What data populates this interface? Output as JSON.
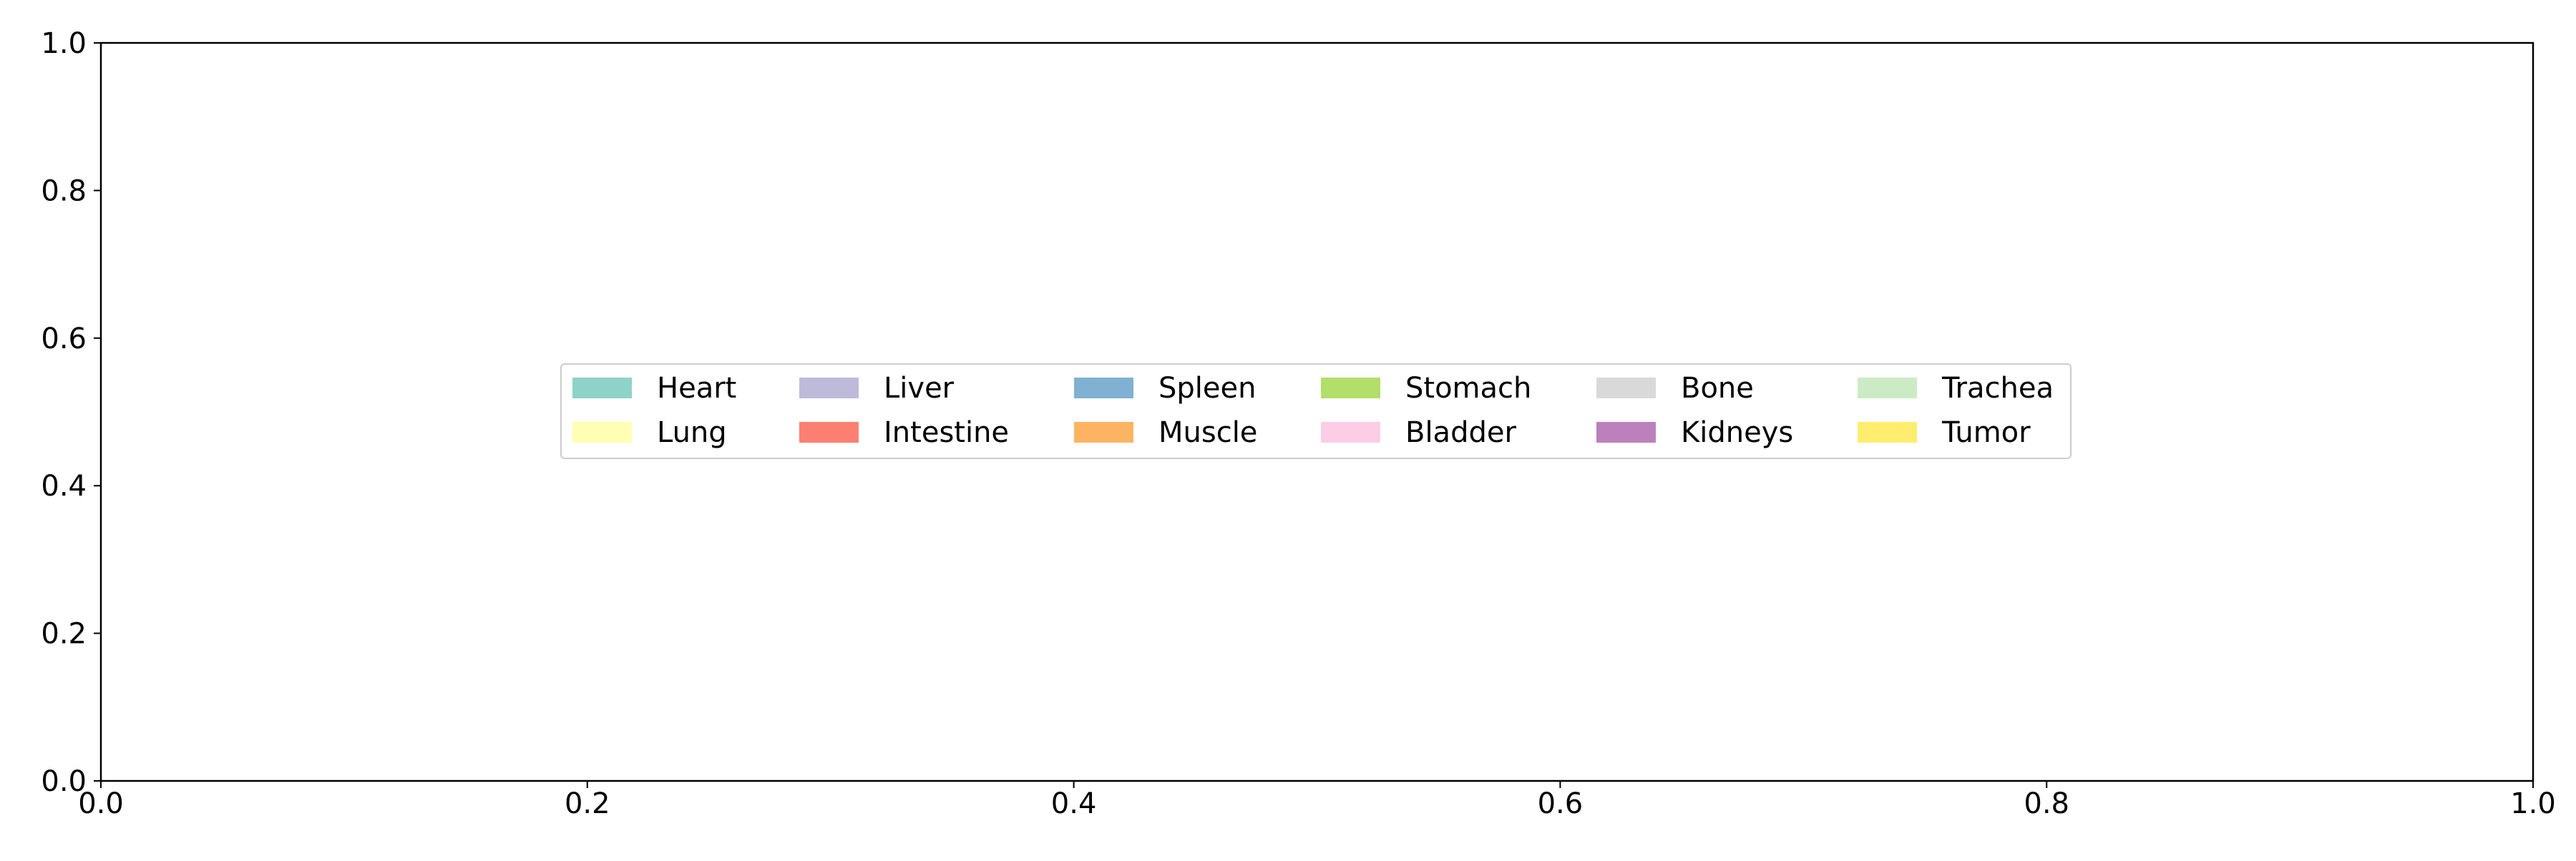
{
  "chart_data": {
    "type": "bar",
    "title": "",
    "xlabel": "",
    "ylabel": "",
    "xlim": [
      0.0,
      1.0
    ],
    "ylim": [
      0.0,
      1.0
    ],
    "x_ticks": [
      "0.0",
      "0.2",
      "0.4",
      "0.6",
      "0.8",
      "1.0"
    ],
    "y_ticks": [
      "0.0",
      "0.2",
      "0.4",
      "0.6",
      "0.8",
      "1.0"
    ],
    "grid": false,
    "legend_placement": "center",
    "legend_columns": 6,
    "series": [
      {
        "name": "Heart",
        "color": "#8dd3c7",
        "values": []
      },
      {
        "name": "Lung",
        "color": "#ffffb3",
        "values": []
      },
      {
        "name": "Liver",
        "color": "#bebada",
        "values": []
      },
      {
        "name": "Intestine",
        "color": "#fb8072",
        "values": []
      },
      {
        "name": "Spleen",
        "color": "#80b1d3",
        "values": []
      },
      {
        "name": "Muscle",
        "color": "#fdb462",
        "values": []
      },
      {
        "name": "Stomach",
        "color": "#b3de69",
        "values": []
      },
      {
        "name": "Bladder",
        "color": "#fccde5",
        "values": []
      },
      {
        "name": "Bone",
        "color": "#d9d9d9",
        "values": []
      },
      {
        "name": "Kidneys",
        "color": "#bc80bd",
        "values": []
      },
      {
        "name": "Trachea",
        "color": "#ccebc5",
        "values": []
      },
      {
        "name": "Tumor",
        "color": "#ffed6f",
        "values": []
      }
    ]
  }
}
